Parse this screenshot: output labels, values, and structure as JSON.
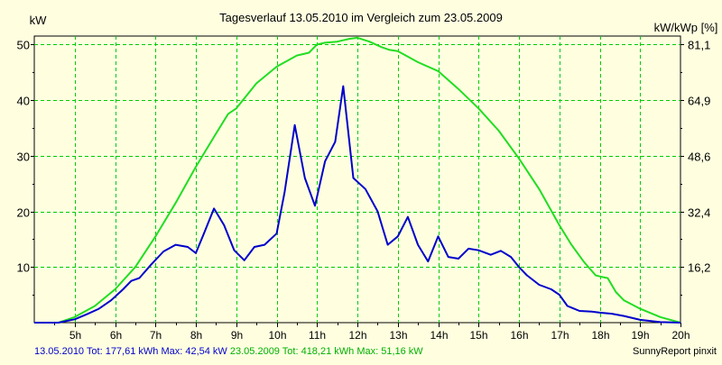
{
  "chart_data": {
    "type": "line",
    "title": "Tagesverlauf 13.05.2010 im Vergleich zum 23.05.2009",
    "ylabel_left": "kW",
    "ylabel_right": "kW/kWp [%]",
    "xlim": [
      4.0,
      20.0
    ],
    "ylim": [
      0,
      51.5
    ],
    "x_ticks": [
      5,
      6,
      7,
      8,
      9,
      10,
      11,
      12,
      13,
      14,
      15,
      16,
      17,
      18,
      19,
      20
    ],
    "x_tick_labels": [
      "5h",
      "6h",
      "7h",
      "8h",
      "9h",
      "10h",
      "11h",
      "12h",
      "13h",
      "14h",
      "15h",
      "16h",
      "17h",
      "18h",
      "19h",
      "20h"
    ],
    "y_ticks_left": [
      10,
      20,
      30,
      40,
      50
    ],
    "y_tick_labels_left": [
      "10",
      "20",
      "30",
      "40",
      "50"
    ],
    "y_ticks_right": [
      10,
      20,
      30,
      40,
      50
    ],
    "y_tick_labels_right": [
      "16,2",
      "32,4",
      "48,6",
      "64,9",
      "81,1"
    ],
    "grid": true,
    "colors": {
      "background": "#ffffe0",
      "plot_background": "#ffffe0",
      "grid": "#00cc00",
      "series_2010": "#0000cc",
      "series_2009": "#22dd22"
    },
    "series": [
      {
        "name": "13.05.2010",
        "color": "#0000cc",
        "x": [
          4.0,
          4.6,
          5.0,
          5.3,
          5.6,
          5.9,
          6.2,
          6.4,
          6.6,
          6.9,
          7.2,
          7.5,
          7.8,
          8.0,
          8.2,
          8.45,
          8.7,
          8.95,
          9.2,
          9.45,
          9.7,
          10.0,
          10.2,
          10.45,
          10.7,
          10.95,
          11.2,
          11.45,
          11.65,
          11.9,
          12.2,
          12.5,
          12.75,
          13.0,
          13.25,
          13.5,
          13.75,
          14.0,
          14.25,
          14.5,
          14.75,
          15.0,
          15.3,
          15.55,
          15.8,
          16.0,
          16.2,
          16.5,
          16.8,
          17.0,
          17.2,
          17.5,
          17.8,
          18.0,
          18.3,
          18.6,
          19.0,
          19.5,
          20.0
        ],
        "values": [
          0,
          0,
          0.6,
          1.5,
          2.5,
          4.0,
          6.0,
          7.5,
          8.0,
          10.5,
          12.8,
          14.0,
          13.6,
          12.5,
          16.0,
          20.5,
          17.5,
          13.0,
          11.2,
          13.6,
          14.0,
          16.0,
          23.5,
          35.5,
          26.0,
          21.0,
          29.0,
          32.5,
          42.5,
          26.0,
          24.0,
          20.0,
          14.0,
          15.5,
          19.0,
          14.0,
          11.0,
          15.5,
          11.8,
          11.5,
          13.3,
          13.0,
          12.2,
          12.9,
          11.8,
          10.0,
          8.5,
          6.8,
          6.0,
          5.0,
          3.0,
          2.1,
          2.0,
          1.8,
          1.6,
          1.2,
          0.5,
          0.1,
          0
        ]
      },
      {
        "name": "23.05.2009",
        "color": "#22dd22",
        "x": [
          4.0,
          4.6,
          5.0,
          5.5,
          6.0,
          6.5,
          7.0,
          7.5,
          8.0,
          8.5,
          8.8,
          9.0,
          9.5,
          10.0,
          10.5,
          10.8,
          11.0,
          11.2,
          11.5,
          11.8,
          12.0,
          12.3,
          12.6,
          12.8,
          13.0,
          13.5,
          14.0,
          14.5,
          15.0,
          15.5,
          16.0,
          16.5,
          17.0,
          17.3,
          17.6,
          17.9,
          18.0,
          18.2,
          18.4,
          18.6,
          19.0,
          19.5,
          20.0
        ],
        "values": [
          0,
          0,
          1.0,
          3.0,
          6.0,
          10.0,
          15.5,
          21.5,
          28.0,
          34.0,
          37.5,
          38.5,
          43.0,
          46.0,
          48.0,
          48.5,
          50.0,
          50.3,
          50.5,
          51.0,
          51.2,
          50.5,
          49.5,
          49.0,
          48.8,
          46.8,
          45.2,
          42.0,
          38.5,
          34.5,
          29.5,
          24.0,
          17.5,
          14.0,
          11.0,
          8.5,
          8.3,
          8.0,
          5.5,
          4.0,
          2.5,
          1.0,
          0
        ]
      }
    ]
  },
  "footer": {
    "series1_text": "13.05.2010 Tot: 177,61 kWh Max: 42,54 kW",
    "series2_text": "23.05.2009 Tot: 418,21 kWh Max: 51,16 kW",
    "credit": "SunnyReport pinxit"
  }
}
